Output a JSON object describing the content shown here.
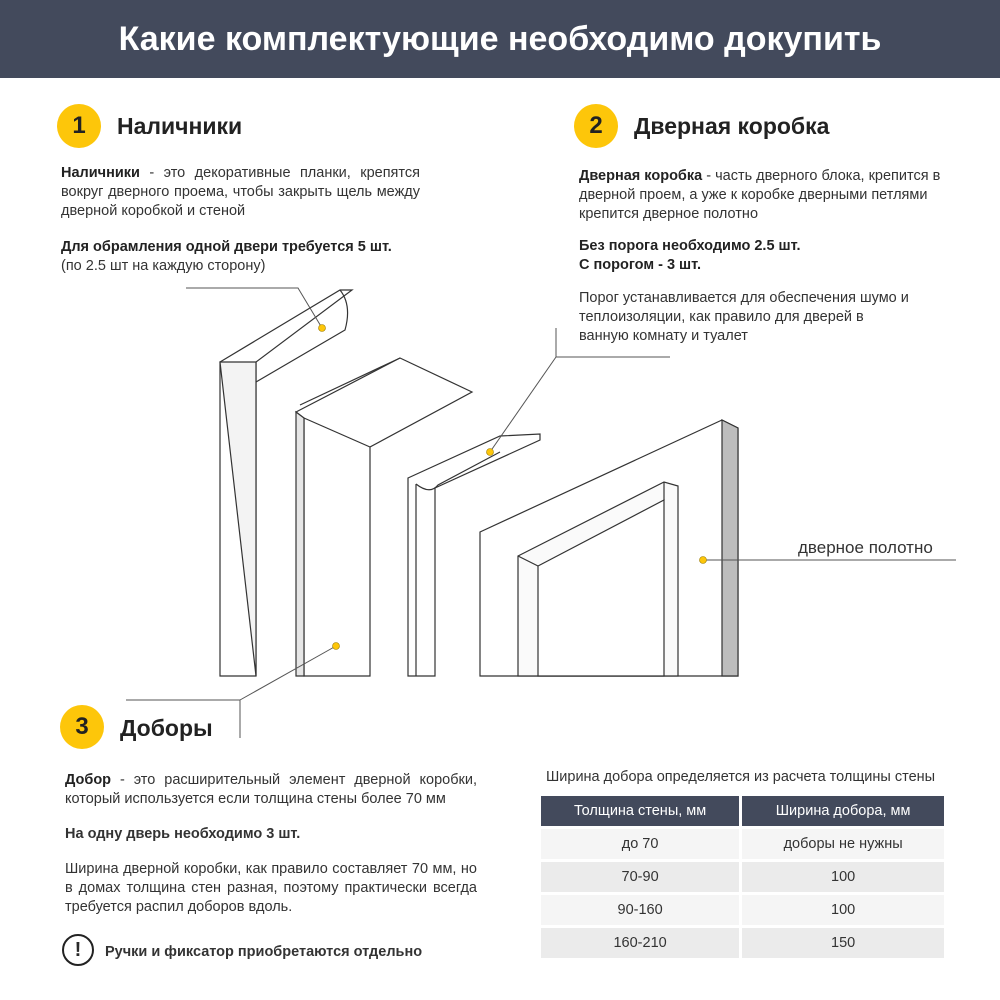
{
  "header": {
    "title": "Какие комплектующие необходимо докупить"
  },
  "section1": {
    "number": "1",
    "title": "Наличники",
    "desc_bold": "Наличники",
    "desc": " - это декоративные планки, крепятся вокруг дверного проема, чтобы закрыть щель между  дверной коробкой и стеной",
    "req_bold": "Для обрамления одной двери требуется 5 шт.",
    "req_note": "(по 2.5 шт на каждую сторону)"
  },
  "section2": {
    "number": "2",
    "title": "Дверная коробка",
    "desc_bold": "Дверная коробка",
    "desc": " - часть дверного блока, крепится в дверной проем, а уже к коробке дверными петлями крепится дверное полотно",
    "req1": "Без порога необходимо 2.5 шт.",
    "req2": "С порогом - 3 шт.",
    "note": "Порог устанавливается для обеспечения шумо и теплоизоляции, как правило для дверей в ванную комнату и туалет"
  },
  "section3": {
    "number": "3",
    "title": "Доборы",
    "desc_bold": "Добор",
    "desc": " - это расширительный элемент дверной коробки, который используется если толщина стены более 70 мм",
    "req": "На одну дверь необходимо 3 шт.",
    "note": "Ширина дверной коробки, как правило составляет 70 мм, но в домах толщина стен разная, поэтому практически всегда требуется распил доборов вдоль."
  },
  "door_label": "дверное полотно",
  "warning": {
    "icon": "exclamation-circle-icon",
    "symbol": "!",
    "text": "Ручки и фиксатор приобретаются отдельно"
  },
  "table": {
    "caption": "Ширина добора определяется из расчета толщины стены",
    "headers": [
      "Толщина стены, мм",
      "Ширина добора, мм"
    ],
    "rows": [
      [
        "до 70",
        "доборы не нужны"
      ],
      [
        "70-90",
        "100"
      ],
      [
        "90-160",
        "100"
      ],
      [
        "160-210",
        "150"
      ]
    ]
  },
  "colors": {
    "header": "#434a5c",
    "accent": "#fdc60a"
  }
}
